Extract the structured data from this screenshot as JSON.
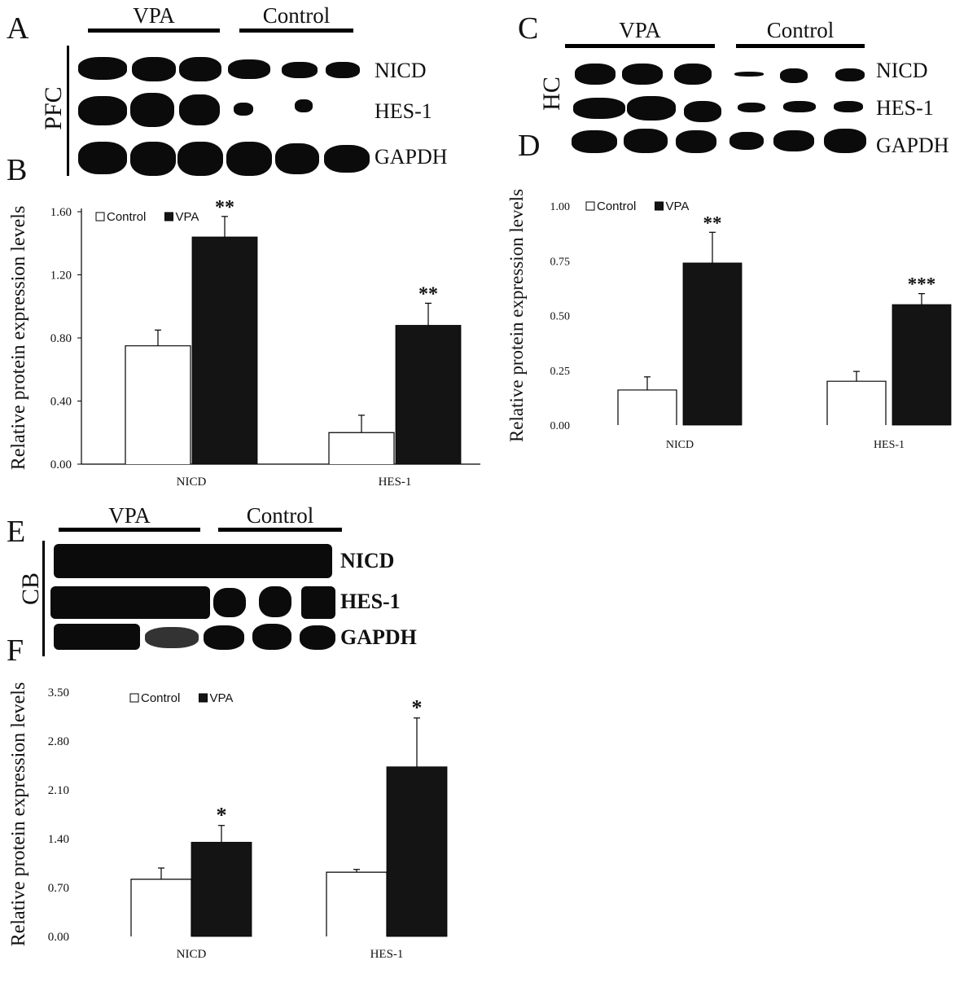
{
  "panels": {
    "A": {
      "letter": "A",
      "region": "PFC",
      "groups": [
        "VPA",
        "Control"
      ],
      "proteins": [
        "NICD",
        "HES-1",
        "GAPDH"
      ]
    },
    "B": {
      "letter": "B"
    },
    "C": {
      "letter": "C",
      "region": "HC",
      "groups": [
        "VPA",
        "Control"
      ],
      "proteins": [
        "NICD",
        "HES-1",
        "GAPDH"
      ]
    },
    "D": {
      "letter": "D"
    },
    "E": {
      "letter": "E",
      "region": "CB",
      "groups": [
        "VPA",
        "Control"
      ],
      "proteins": [
        "NICD",
        "HES-1",
        "GAPDH"
      ]
    },
    "F": {
      "letter": "F"
    }
  },
  "colors": {
    "control_fill": "#ffffff",
    "vpa_fill": "#141414",
    "axis": "#000000"
  },
  "chart_data": [
    {
      "panel": "B",
      "type": "bar",
      "categories": [
        "NICD",
        "HES-1"
      ],
      "series": [
        {
          "name": "Control",
          "values": [
            0.75,
            0.2
          ],
          "errors": [
            0.1,
            0.11
          ]
        },
        {
          "name": "VPA",
          "values": [
            1.44,
            0.88
          ],
          "errors": [
            0.13,
            0.14
          ]
        }
      ],
      "significance": [
        "**",
        "**"
      ],
      "ylabel": "Relative protein expression levels",
      "yticks": [
        "0.00",
        "0.40",
        "0.80",
        "1.20",
        "1.60"
      ],
      "ylim": [
        0,
        1.6
      ],
      "legend": "top-left",
      "grid": false
    },
    {
      "panel": "D",
      "type": "bar",
      "categories": [
        "NICD",
        "HES-1"
      ],
      "series": [
        {
          "name": "Control",
          "values": [
            0.16,
            0.2
          ],
          "errors": [
            0.06,
            0.045
          ]
        },
        {
          "name": "VPA",
          "values": [
            0.74,
            0.55
          ],
          "errors": [
            0.14,
            0.05
          ]
        }
      ],
      "significance": [
        "**",
        "***"
      ],
      "ylabel": "Relative protein expression levels",
      "yticks": [
        "0.00",
        "0.25",
        "0.50",
        "0.75",
        "1.00"
      ],
      "ylim": [
        0,
        1.0
      ],
      "legend": "top-left",
      "grid": false
    },
    {
      "panel": "F",
      "type": "bar",
      "categories": [
        "NICD",
        "HES-1"
      ],
      "series": [
        {
          "name": "Control",
          "values": [
            0.82,
            0.92
          ],
          "errors": [
            0.16,
            0.04
          ]
        },
        {
          "name": "VPA",
          "values": [
            1.35,
            2.43
          ],
          "errors": [
            0.24,
            0.7
          ]
        }
      ],
      "significance": [
        "*",
        "*"
      ],
      "ylabel": "Relative protein expression levels",
      "yticks": [
        "0.00",
        "0.70",
        "1.40",
        "2.10",
        "2.80",
        "3.50"
      ],
      "ylim": [
        0,
        3.5
      ],
      "legend": "top-left",
      "grid": false
    }
  ]
}
